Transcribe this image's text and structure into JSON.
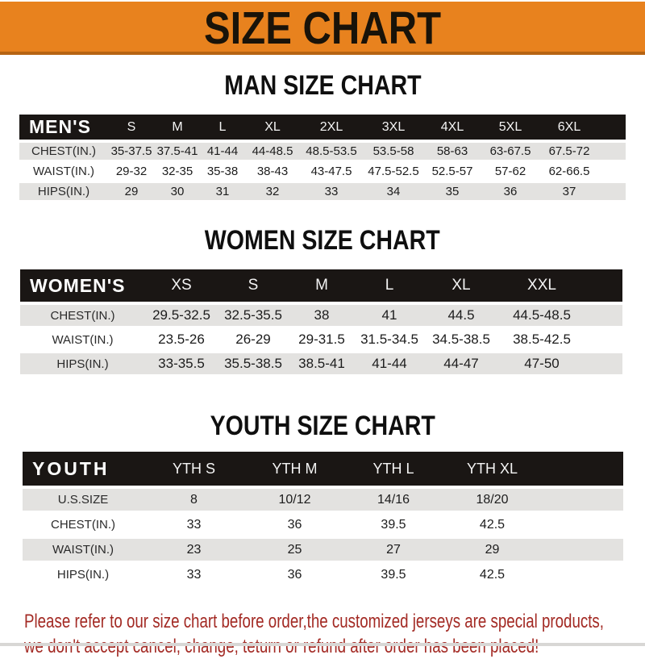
{
  "banner": {
    "title": "SIZE CHART",
    "bg_color": "#E8821E",
    "text_color": "#191309"
  },
  "colors": {
    "banner_bg": "#E8821E",
    "header_bar": "#1A1614",
    "row_stripe": "#E3E2E0",
    "footer_text": "#A32A24"
  },
  "chart_data": [
    {
      "type": "table",
      "title": "MAN SIZE CHART",
      "header_label": "MEN'S",
      "columns": [
        "S",
        "M",
        "L",
        "XL",
        "2XL",
        "3XL",
        "4XL",
        "5XL",
        "6XL"
      ],
      "rows": [
        {
          "label": "CHEST(IN.)",
          "values": [
            "35-37.5",
            "37.5-41",
            "41-44",
            "44-48.5",
            "48.5-53.5",
            "53.5-58",
            "58-63",
            "63-67.5",
            "67.5-72"
          ]
        },
        {
          "label": "WAIST(IN.)",
          "values": [
            "29-32",
            "32-35",
            "35-38",
            "38-43",
            "43-47.5",
            "47.5-52.5",
            "52.5-57",
            "57-62",
            "62-66.5"
          ]
        },
        {
          "label": "HIPS(IN.)",
          "values": [
            "29",
            "30",
            "31",
            "32",
            "33",
            "34",
            "35",
            "36",
            "37"
          ]
        }
      ]
    },
    {
      "type": "table",
      "title": "WOMEN SIZE CHART",
      "header_label": "WOMEN'S",
      "columns": [
        "XS",
        "S",
        "M",
        "L",
        "XL",
        "XXL"
      ],
      "rows": [
        {
          "label": "CHEST(IN.)",
          "values": [
            "29.5-32.5",
            "32.5-35.5",
            "38",
            "41",
            "44.5",
            "44.5-48.5"
          ]
        },
        {
          "label": "WAIST(IN.)",
          "values": [
            "23.5-26",
            "26-29",
            "29-31.5",
            "31.5-34.5",
            "34.5-38.5",
            "38.5-42.5"
          ]
        },
        {
          "label": "HIPS(IN.)",
          "values": [
            "33-35.5",
            "35.5-38.5",
            "38.5-41",
            "41-44",
            "44-47",
            "47-50"
          ]
        }
      ]
    },
    {
      "type": "table",
      "title": "YOUTH SIZE CHART",
      "header_label": "YOUTH",
      "columns": [
        "YTH S",
        "YTH M",
        "YTH L",
        "YTH XL"
      ],
      "rows": [
        {
          "label": "U.S.SIZE",
          "values": [
            "8",
            "10/12",
            "14/16",
            "18/20"
          ]
        },
        {
          "label": "CHEST(IN.)",
          "values": [
            "33",
            "36",
            "39.5",
            "42.5"
          ]
        },
        {
          "label": "WAIST(IN.)",
          "values": [
            "23",
            "25",
            "27",
            "29"
          ]
        },
        {
          "label": "HIPS(IN.)",
          "values": [
            "33",
            "36",
            "39.5",
            "42.5"
          ]
        }
      ]
    }
  ],
  "footer": {
    "line1": "Please refer to our size chart before order,the customized jerseys are special products,",
    "line2": "we don't accept cancel, change, teturn or refund after order has been placed!"
  }
}
